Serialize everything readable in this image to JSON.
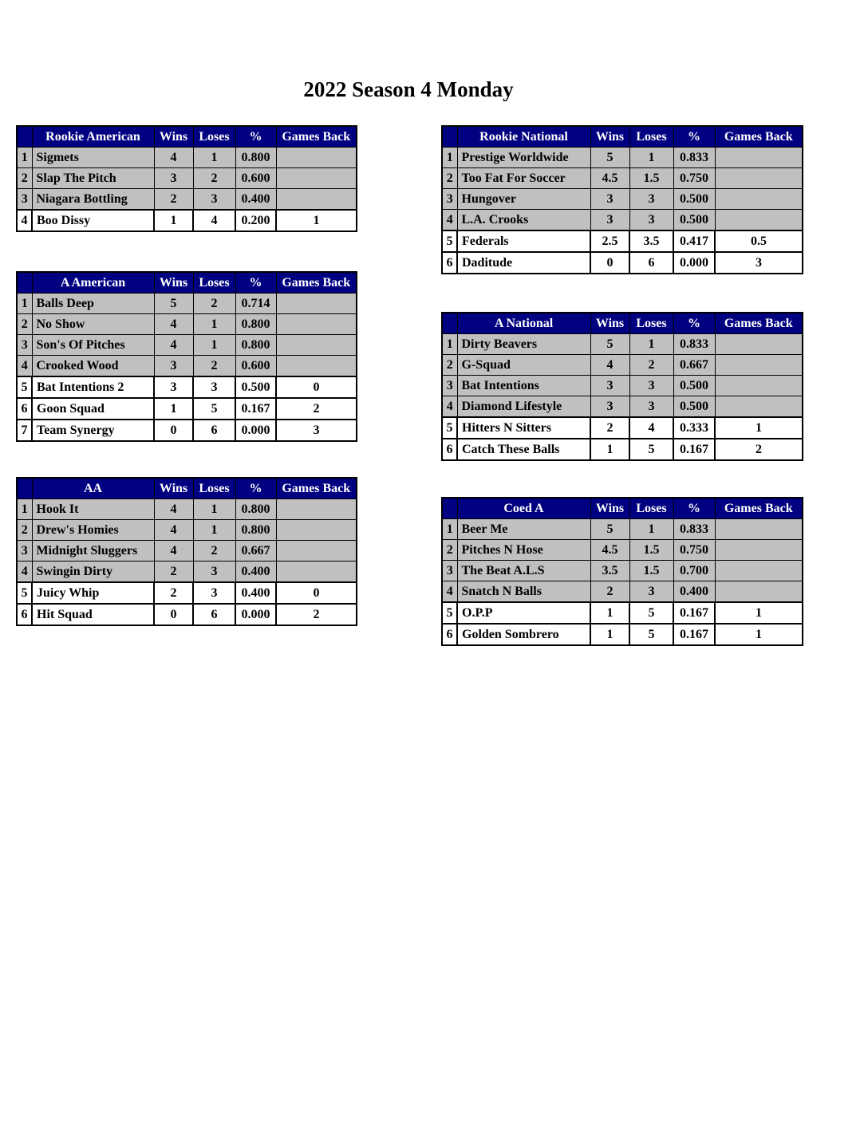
{
  "title": "2022 Season 4 Monday",
  "columns": {
    "wins": "Wins",
    "loses": "Loses",
    "pct": "%",
    "games_back": "Games Back"
  },
  "colors": {
    "header_bg": "#000080",
    "header_text": "#ffffff",
    "row_gray": "#c0c0c0",
    "row_white": "#ffffff",
    "border": "#000000"
  },
  "tables": [
    {
      "name": "Rookie American",
      "rows": [
        {
          "rank": "1",
          "team": "Sigmets",
          "wins": "4",
          "loses": "1",
          "pct": "0.800",
          "games_back": "",
          "highlight": false
        },
        {
          "rank": "2",
          "team": "Slap The Pitch",
          "wins": "3",
          "loses": "2",
          "pct": "0.600",
          "games_back": "",
          "highlight": false
        },
        {
          "rank": "3",
          "team": "Niagara Bottling",
          "wins": "2",
          "loses": "3",
          "pct": "0.400",
          "games_back": "",
          "highlight": false
        },
        {
          "rank": "4",
          "team": "Boo Dissy",
          "wins": "1",
          "loses": "4",
          "pct": "0.200",
          "games_back": "1",
          "highlight": true
        }
      ]
    },
    {
      "name": "Rookie National",
      "rows": [
        {
          "rank": "1",
          "team": "Prestige Worldwide",
          "wins": "5",
          "loses": "1",
          "pct": "0.833",
          "games_back": "",
          "highlight": false
        },
        {
          "rank": "2",
          "team": "Too Fat For Soccer",
          "wins": "4.5",
          "loses": "1.5",
          "pct": "0.750",
          "games_back": "",
          "highlight": false
        },
        {
          "rank": "3",
          "team": "Hungover",
          "wins": "3",
          "loses": "3",
          "pct": "0.500",
          "games_back": "",
          "highlight": false
        },
        {
          "rank": "4",
          "team": "L.A. Crooks",
          "wins": "3",
          "loses": "3",
          "pct": "0.500",
          "games_back": "",
          "highlight": false
        },
        {
          "rank": "5",
          "team": "Federals",
          "wins": "2.5",
          "loses": "3.5",
          "pct": "0.417",
          "games_back": "0.5",
          "highlight": true
        },
        {
          "rank": "6",
          "team": "Daditude",
          "wins": "0",
          "loses": "6",
          "pct": "0.000",
          "games_back": "3",
          "highlight": true
        }
      ]
    },
    {
      "name": "A American",
      "rows": [
        {
          "rank": "1",
          "team": "Balls Deep",
          "wins": "5",
          "loses": "2",
          "pct": "0.714",
          "games_back": "",
          "highlight": false
        },
        {
          "rank": "2",
          "team": "No Show",
          "wins": "4",
          "loses": "1",
          "pct": "0.800",
          "games_back": "",
          "highlight": false
        },
        {
          "rank": "3",
          "team": "Son's Of Pitches",
          "wins": "4",
          "loses": "1",
          "pct": "0.800",
          "games_back": "",
          "highlight": false
        },
        {
          "rank": "4",
          "team": "Crooked Wood",
          "wins": "3",
          "loses": "2",
          "pct": "0.600",
          "games_back": "",
          "highlight": false
        },
        {
          "rank": "5",
          "team": "Bat Intentions 2",
          "wins": "3",
          "loses": "3",
          "pct": "0.500",
          "games_back": "0",
          "highlight": true
        },
        {
          "rank": "6",
          "team": "Goon Squad",
          "wins": "1",
          "loses": "5",
          "pct": "0.167",
          "games_back": "2",
          "highlight": true
        },
        {
          "rank": "7",
          "team": "Team Synergy",
          "wins": "0",
          "loses": "6",
          "pct": "0.000",
          "games_back": "3",
          "highlight": true
        }
      ]
    },
    {
      "name": "A National",
      "rows": [
        {
          "rank": "1",
          "team": "Dirty Beavers",
          "wins": "5",
          "loses": "1",
          "pct": "0.833",
          "games_back": "",
          "highlight": false
        },
        {
          "rank": "2",
          "team": "G-Squad",
          "wins": "4",
          "loses": "2",
          "pct": "0.667",
          "games_back": "",
          "highlight": false
        },
        {
          "rank": "3",
          "team": "Bat Intentions",
          "wins": "3",
          "loses": "3",
          "pct": "0.500",
          "games_back": "",
          "highlight": false
        },
        {
          "rank": "4",
          "team": "Diamond Lifestyle",
          "wins": "3",
          "loses": "3",
          "pct": "0.500",
          "games_back": "",
          "highlight": false
        },
        {
          "rank": "5",
          "team": "Hitters N Sitters",
          "wins": "2",
          "loses": "4",
          "pct": "0.333",
          "games_back": "1",
          "highlight": true
        },
        {
          "rank": "6",
          "team": "Catch These Balls",
          "wins": "1",
          "loses": "5",
          "pct": "0.167",
          "games_back": "2",
          "highlight": true
        }
      ]
    },
    {
      "name": "AA",
      "rows": [
        {
          "rank": "1",
          "team": "Hook It",
          "wins": "4",
          "loses": "1",
          "pct": "0.800",
          "games_back": "",
          "highlight": false
        },
        {
          "rank": "2",
          "team": "Drew's Homies",
          "wins": "4",
          "loses": "1",
          "pct": "0.800",
          "games_back": "",
          "highlight": false
        },
        {
          "rank": "3",
          "team": "Midnight Sluggers",
          "wins": "4",
          "loses": "2",
          "pct": "0.667",
          "games_back": "",
          "highlight": false
        },
        {
          "rank": "4",
          "team": "Swingin Dirty",
          "wins": "2",
          "loses": "3",
          "pct": "0.400",
          "games_back": "",
          "highlight": false
        },
        {
          "rank": "5",
          "team": "Juicy Whip",
          "wins": "2",
          "loses": "3",
          "pct": "0.400",
          "games_back": "0",
          "highlight": true
        },
        {
          "rank": "6",
          "team": "Hit Squad",
          "wins": "0",
          "loses": "6",
          "pct": "0.000",
          "games_back": "2",
          "highlight": true
        }
      ]
    },
    {
      "name": "Coed A",
      "rows": [
        {
          "rank": "1",
          "team": "Beer Me",
          "wins": "5",
          "loses": "1",
          "pct": "0.833",
          "games_back": "",
          "highlight": false
        },
        {
          "rank": "2",
          "team": "Pitches N Hose",
          "wins": "4.5",
          "loses": "1.5",
          "pct": "0.750",
          "games_back": "",
          "highlight": false
        },
        {
          "rank": "3",
          "team": "The Beat A.L.S",
          "wins": "3.5",
          "loses": "1.5",
          "pct": "0.700",
          "games_back": "",
          "highlight": false
        },
        {
          "rank": "4",
          "team": "Snatch N Balls",
          "wins": "2",
          "loses": "3",
          "pct": "0.400",
          "games_back": "",
          "highlight": false
        },
        {
          "rank": "5",
          "team": "O.P.P",
          "wins": "1",
          "loses": "5",
          "pct": "0.167",
          "games_back": "1",
          "highlight": true
        },
        {
          "rank": "6",
          "team": "Golden Sombrero",
          "wins": "1",
          "loses": "5",
          "pct": "0.167",
          "games_back": "1",
          "highlight": true
        }
      ]
    }
  ]
}
